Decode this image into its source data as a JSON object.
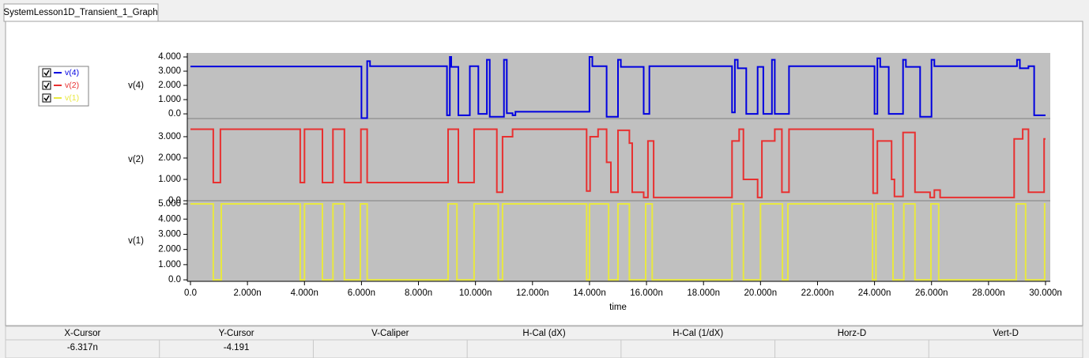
{
  "tab": {
    "title": "SystemLesson1D_Transient_1_Graph"
  },
  "chart_data": [
    {
      "type": "line",
      "ylabel": "v(4)",
      "series": [
        {
          "name": "v(4)",
          "color": "#0000e0",
          "x": [
            0,
            6.0,
            6.0,
            6.2,
            6.2,
            6.3,
            6.3,
            9.0,
            9.0,
            9.1,
            9.1,
            9.15,
            9.15,
            9.4,
            9.4,
            9.8,
            9.8,
            10.1,
            10.1,
            10.4,
            10.4,
            10.5,
            10.5,
            11.0,
            11.0,
            11.1,
            11.1,
            11.3,
            11.3,
            11.4,
            11.4,
            14.0,
            14.0,
            14.1,
            14.1,
            14.6,
            14.6,
            15.0,
            15.0,
            15.1,
            15.1,
            15.9,
            15.9,
            16.1,
            16.1,
            19.0,
            19.0,
            19.1,
            19.1,
            19.2,
            19.2,
            19.5,
            19.5,
            19.9,
            19.9,
            20.1,
            20.1,
            20.4,
            20.4,
            20.5,
            20.5,
            21.0,
            21.0,
            24.0,
            24.0,
            24.1,
            24.1,
            24.2,
            24.2,
            24.5,
            24.5,
            25.0,
            25.0,
            25.1,
            25.1,
            25.6,
            25.6,
            26.0,
            26.0,
            26.1,
            26.1,
            29.0,
            29.0,
            29.1,
            29.1,
            29.4,
            29.4,
            29.6,
            29.6,
            30
          ],
          "values": [
            3.33,
            3.33,
            -0.3,
            -0.3,
            3.7,
            3.7,
            3.35,
            3.35,
            -0.1,
            -0.1,
            4.0,
            4.0,
            3.3,
            3.3,
            -0.1,
            -0.1,
            3.35,
            3.35,
            0.0,
            0.0,
            3.8,
            3.8,
            -0.2,
            -0.2,
            3.8,
            3.8,
            0.05,
            0.05,
            -0.1,
            -0.1,
            0.15,
            0.15,
            4.0,
            4.0,
            3.35,
            3.35,
            -0.2,
            -0.2,
            3.8,
            3.8,
            3.3,
            3.3,
            0.0,
            0.0,
            3.35,
            3.35,
            0.1,
            0.1,
            3.8,
            3.8,
            3.2,
            3.2,
            0.0,
            0.0,
            3.3,
            3.3,
            0.0,
            0.0,
            3.8,
            3.8,
            0.0,
            0.0,
            3.35,
            3.35,
            0.0,
            0.0,
            3.9,
            3.9,
            3.3,
            3.3,
            0.0,
            0.0,
            3.8,
            3.8,
            3.3,
            3.3,
            -0.2,
            -0.2,
            3.8,
            3.8,
            3.35,
            3.35,
            3.8,
            3.8,
            3.2,
            3.2,
            3.35,
            3.35,
            -0.1,
            -0.1
          ]
        }
      ],
      "xlim": [
        0,
        30
      ],
      "ylim": [
        -0.33,
        4.28
      ],
      "yticks": [
        {
          "value": 0,
          "label": "0.0"
        },
        {
          "value": 1,
          "label": "1.000"
        },
        {
          "value": 2,
          "label": "2.000"
        },
        {
          "value": 3,
          "label": "3.000"
        },
        {
          "value": 4,
          "label": "4.000"
        }
      ]
    },
    {
      "type": "line",
      "ylabel": "v(2)",
      "series": [
        {
          "name": "v(2)",
          "color": "#e83030",
          "x": [
            0,
            0.8,
            0.8,
            1.05,
            1.05,
            3.85,
            3.85,
            4.0,
            4.0,
            4.63,
            4.63,
            5.0,
            5.0,
            5.4,
            5.4,
            5.98,
            5.98,
            6.2,
            6.2,
            9.04,
            9.04,
            9.4,
            9.4,
            9.95,
            9.95,
            10.75,
            10.75,
            10.95,
            10.95,
            11.3,
            11.3,
            13.9,
            13.9,
            14.02,
            14.02,
            14.3,
            14.3,
            14.6,
            14.6,
            14.75,
            14.75,
            15.0,
            15.0,
            15.4,
            15.4,
            15.5,
            15.5,
            15.9,
            15.9,
            16.05,
            16.05,
            16.25,
            16.25,
            19.0,
            19.0,
            19.25,
            19.25,
            19.4,
            19.4,
            19.9,
            19.9,
            20.05,
            20.05,
            20.5,
            20.5,
            20.75,
            20.75,
            21.0,
            21.0,
            23.95,
            23.95,
            24.1,
            24.1,
            24.6,
            24.6,
            24.7,
            24.7,
            25.0,
            25.0,
            25.42,
            25.42,
            25.95,
            25.95,
            26.1,
            26.1,
            26.3,
            26.3,
            28.9,
            28.9,
            29.2,
            29.2,
            29.4,
            29.4,
            29.95,
            29.95,
            30
          ],
          "values": [
            3.35,
            3.35,
            0.85,
            0.85,
            3.35,
            3.35,
            0.85,
            0.85,
            3.35,
            3.35,
            0.85,
            0.85,
            3.35,
            3.35,
            0.85,
            0.85,
            3.35,
            3.35,
            0.85,
            0.85,
            3.35,
            3.35,
            0.85,
            0.85,
            3.35,
            3.35,
            0.4,
            0.4,
            3.0,
            3.0,
            3.35,
            3.35,
            0.45,
            0.45,
            3.0,
            3.0,
            3.35,
            3.35,
            1.8,
            1.8,
            0.4,
            0.4,
            3.3,
            3.3,
            2.7,
            2.7,
            0.4,
            0.4,
            0.15,
            0.15,
            2.8,
            2.8,
            0.15,
            0.15,
            2.8,
            2.8,
            3.35,
            3.35,
            1.0,
            1.0,
            0.15,
            0.15,
            2.8,
            2.8,
            3.35,
            3.35,
            0.4,
            0.4,
            3.35,
            3.35,
            0.35,
            0.35,
            2.8,
            2.8,
            1.0,
            1.0,
            0.2,
            0.2,
            3.2,
            3.2,
            0.4,
            0.4,
            0.15,
            0.15,
            0.5,
            0.5,
            0.15,
            0.15,
            2.9,
            2.9,
            3.35,
            3.35,
            0.4,
            0.4,
            2.9,
            2.9
          ]
        }
      ],
      "xlim": [
        0,
        30
      ],
      "ylim": [
        0,
        3.85
      ],
      "yticks": [
        {
          "value": 0,
          "label": "0.0"
        },
        {
          "value": 1,
          "label": "1.000"
        },
        {
          "value": 2,
          "label": "2.000"
        },
        {
          "value": 3,
          "label": "3.000"
        }
      ]
    },
    {
      "type": "line",
      "ylabel": "v(1)",
      "xlabel": "time",
      "series": [
        {
          "name": "v(1)",
          "color": "#e8e840",
          "x": [
            0,
            0.8,
            0.8,
            1.08,
            1.08,
            3.85,
            3.85,
            4.0,
            4.0,
            4.63,
            4.63,
            5.0,
            5.0,
            5.4,
            5.4,
            5.96,
            5.96,
            6.2,
            6.2,
            9.04,
            9.04,
            9.35,
            9.35,
            9.95,
            9.95,
            10.8,
            10.8,
            10.95,
            10.95,
            13.9,
            13.9,
            14.0,
            14.0,
            14.67,
            14.67,
            15.0,
            15.0,
            15.4,
            15.4,
            15.97,
            15.97,
            16.2,
            16.2,
            19.0,
            19.0,
            19.4,
            19.4,
            20.0,
            20.0,
            20.77,
            20.77,
            20.96,
            20.96,
            23.93,
            23.93,
            24.05,
            24.05,
            24.65,
            24.65,
            25.03,
            25.03,
            25.42,
            25.42,
            25.98,
            25.98,
            26.25,
            26.25,
            28.97,
            28.97,
            29.3,
            29.3,
            29.97,
            29.97,
            30
          ],
          "values": [
            5,
            5,
            0,
            0,
            5,
            5,
            0,
            0,
            5,
            5,
            0,
            0,
            5,
            5,
            0,
            0,
            5,
            5,
            0,
            0,
            5,
            5,
            0,
            0,
            5,
            5,
            0,
            0,
            5,
            5,
            0,
            0,
            5,
            5,
            0,
            0,
            5,
            5,
            0,
            0,
            5,
            5,
            0,
            0,
            5,
            5,
            0,
            0,
            5,
            5,
            0,
            0,
            5,
            5,
            0,
            0,
            5,
            5,
            0,
            0,
            5,
            5,
            0,
            0,
            5,
            5,
            0,
            0,
            5,
            5,
            0,
            0,
            5,
            5
          ]
        }
      ],
      "xlim": [
        0,
        30
      ],
      "ylim": [
        -0.1,
        5.21
      ],
      "yticks": [
        {
          "value": 0,
          "label": "0.0"
        },
        {
          "value": 1,
          "label": "1.000"
        },
        {
          "value": 2,
          "label": "2.000"
        },
        {
          "value": 3,
          "label": "3.000"
        },
        {
          "value": 4,
          "label": "4.000"
        },
        {
          "value": 5,
          "label": "5.000"
        }
      ],
      "xticks": [
        {
          "value": 0,
          "label": "0.0"
        },
        {
          "value": 2,
          "label": "2.000n"
        },
        {
          "value": 4,
          "label": "4.000n"
        },
        {
          "value": 6,
          "label": "6.000n"
        },
        {
          "value": 8,
          "label": "8.000n"
        },
        {
          "value": 10,
          "label": "10.000n"
        },
        {
          "value": 12,
          "label": "12.000n"
        },
        {
          "value": 14,
          "label": "14.000n"
        },
        {
          "value": 16,
          "label": "16.000n"
        },
        {
          "value": 18,
          "label": "18.000n"
        },
        {
          "value": 20,
          "label": "20.000n"
        },
        {
          "value": 22,
          "label": "22.000n"
        },
        {
          "value": 24,
          "label": "24.000n"
        },
        {
          "value": 26,
          "label": "26.000n"
        },
        {
          "value": 28,
          "label": "28.000n"
        },
        {
          "value": 30,
          "label": "30.000n"
        }
      ]
    }
  ],
  "cursor_table": {
    "headers": [
      "X-Cursor",
      "Y-Cursor",
      "V-Caliper",
      "H-Cal (dX)",
      "H-Cal (1/dX)",
      "Horz-D",
      "Vert-D"
    ],
    "values": [
      "-6.317n",
      "-4.191"
    ]
  }
}
